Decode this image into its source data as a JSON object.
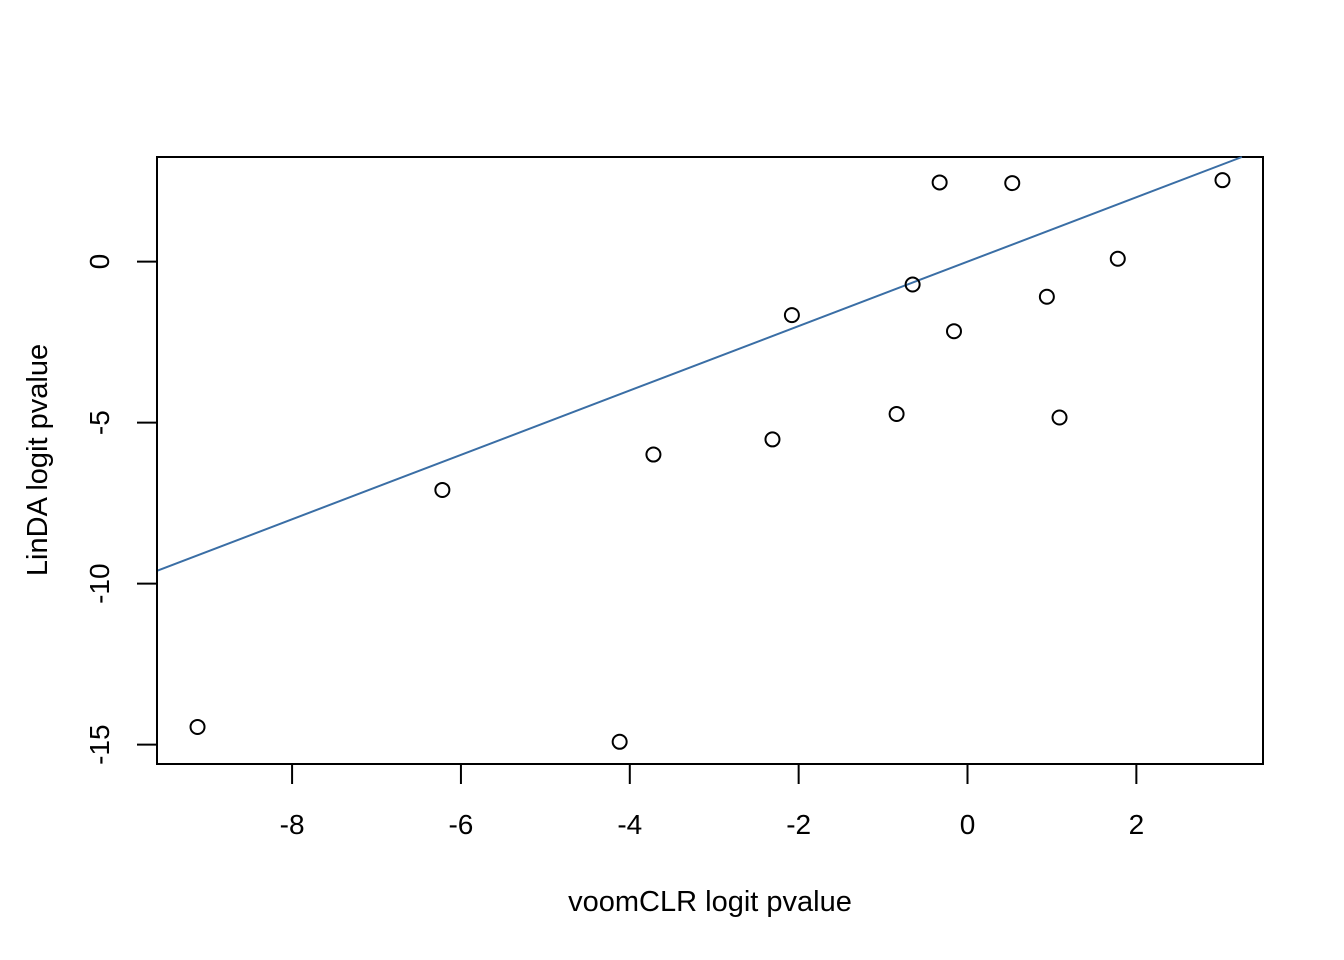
{
  "chart_data": {
    "type": "scatter",
    "title": "",
    "xlabel": "voomCLR logit pvalue",
    "ylabel": "LinDA logit pvalue",
    "xlim": [
      -9.6,
      3.5
    ],
    "ylim": [
      -15.6,
      3.25
    ],
    "x_ticks": [
      -8,
      -6,
      -4,
      -2,
      0,
      2
    ],
    "y_ticks": [
      -15,
      -10,
      -5,
      0
    ],
    "x_tick_labels": [
      "-8",
      "-6",
      "-4",
      "-2",
      "0",
      "2"
    ],
    "y_tick_labels": [
      "-15",
      "-10",
      "-5",
      "0"
    ],
    "grid": false,
    "reference_line": {
      "intercept": 0,
      "slope": 1,
      "color": "#3a6ea5"
    },
    "points": [
      {
        "x": -9.12,
        "y": -14.45
      },
      {
        "x": -6.22,
        "y": -7.09
      },
      {
        "x": -4.12,
        "y": -14.91
      },
      {
        "x": -3.72,
        "y": -5.99
      },
      {
        "x": -2.31,
        "y": -5.52
      },
      {
        "x": -2.08,
        "y": -1.66
      },
      {
        "x": -0.84,
        "y": -4.73
      },
      {
        "x": -0.65,
        "y": -0.71
      },
      {
        "x": -0.33,
        "y": 2.46
      },
      {
        "x": -0.16,
        "y": -2.16
      },
      {
        "x": 0.53,
        "y": 2.44
      },
      {
        "x": 0.94,
        "y": -1.09
      },
      {
        "x": 1.09,
        "y": -4.84
      },
      {
        "x": 1.78,
        "y": 0.09
      },
      {
        "x": 3.02,
        "y": 2.53
      }
    ],
    "point_color": "#000000"
  }
}
